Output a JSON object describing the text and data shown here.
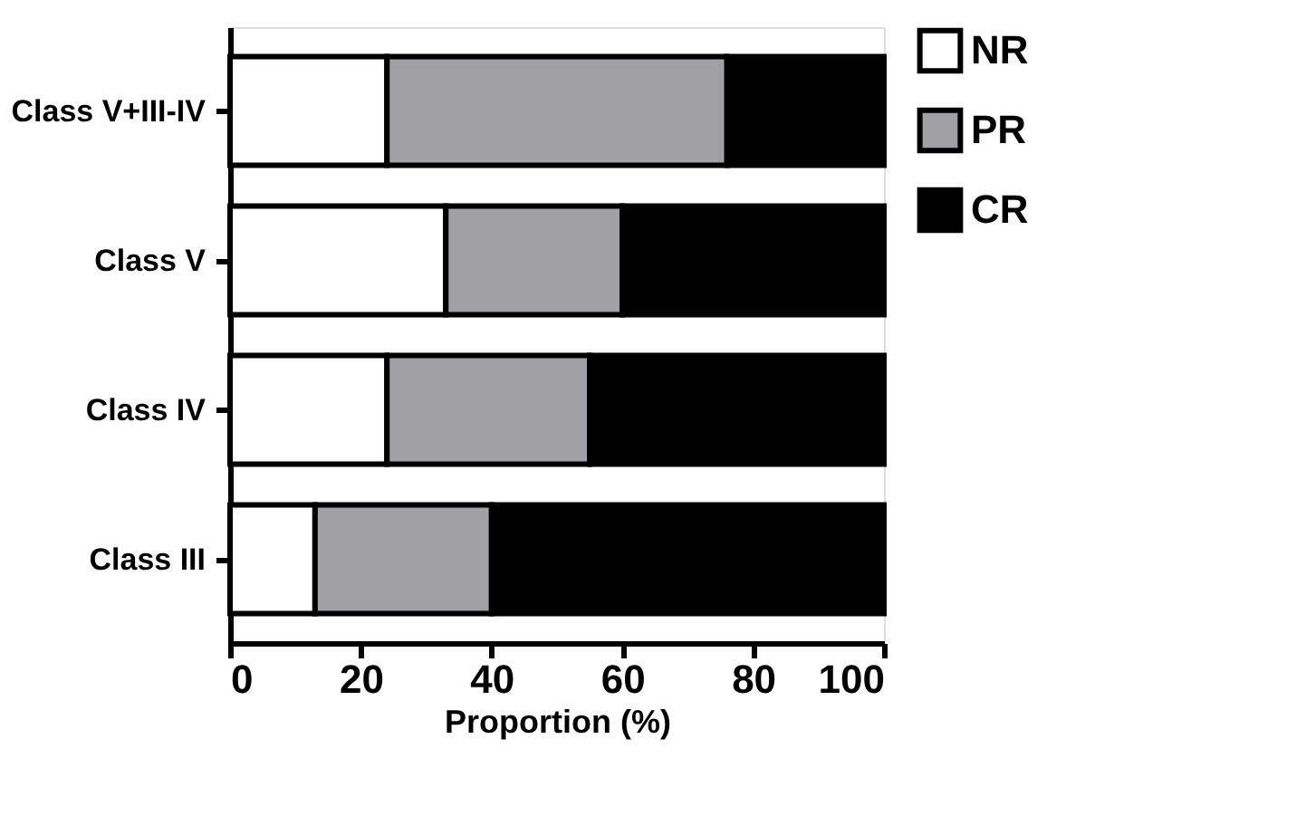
{
  "chart_data": {
    "type": "bar",
    "orientation": "horizontal",
    "stacked": true,
    "categories": [
      "Class V+III-IV",
      "Class V",
      "Class IV",
      "Class III"
    ],
    "series": [
      {
        "name": "NR",
        "color": "#ffffff",
        "values": [
          24,
          33,
          24,
          13
        ]
      },
      {
        "name": "PR",
        "color": "#a1a0a5",
        "values": [
          52,
          27,
          31,
          27
        ]
      },
      {
        "name": "CR",
        "color": "#000000",
        "values": [
          24,
          40,
          45,
          60
        ]
      }
    ],
    "xlabel": "Proportion (%)",
    "xlim": [
      0,
      100
    ],
    "xticks": [
      0,
      20,
      40,
      60,
      80,
      100
    ],
    "grid": false,
    "legend": "top right"
  }
}
